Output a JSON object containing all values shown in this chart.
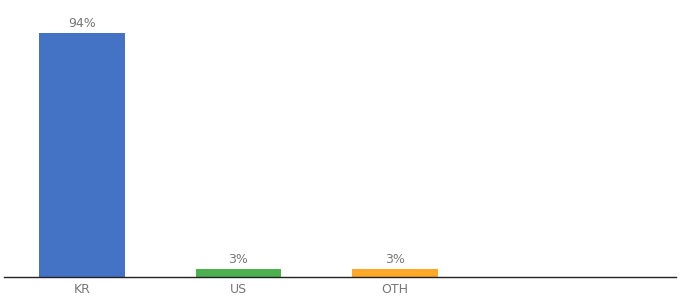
{
  "categories": [
    "KR",
    "US",
    "OTH"
  ],
  "values": [
    94,
    3,
    3
  ],
  "bar_colors": [
    "#4472c4",
    "#4caf50",
    "#ffa726"
  ],
  "bar_labels": [
    "94%",
    "3%",
    "3%"
  ],
  "background_color": "#ffffff",
  "ylim": [
    0,
    105
  ],
  "label_fontsize": 9,
  "tick_fontsize": 9,
  "bar_width": 0.55,
  "x_positions": [
    0,
    1,
    1.5
  ]
}
